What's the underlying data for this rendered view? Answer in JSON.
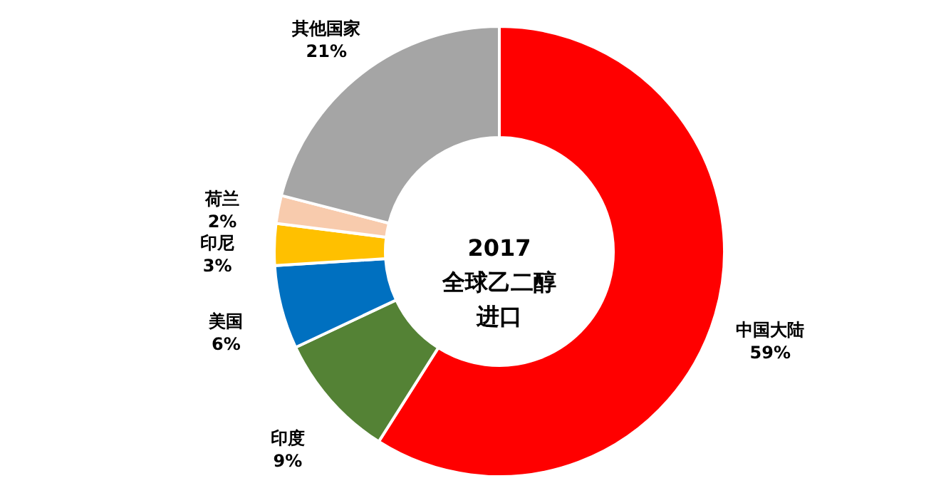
{
  "chart_data": {
    "type": "donut",
    "title": "2017",
    "subtitle": "全球乙二醇进口",
    "categories": [
      "中国大陆",
      "印度",
      "美国",
      "印尼",
      "荷兰",
      "其他国家"
    ],
    "values": [
      59,
      9,
      6,
      3,
      2,
      21
    ],
    "colors": [
      "#ff0000",
      "#548235",
      "#0070c0",
      "#ffc000",
      "#f8cbad",
      "#a5a5a5"
    ],
    "value_labels": [
      "59%",
      "9%",
      "6%",
      "3%",
      "2%",
      "21%"
    ]
  }
}
